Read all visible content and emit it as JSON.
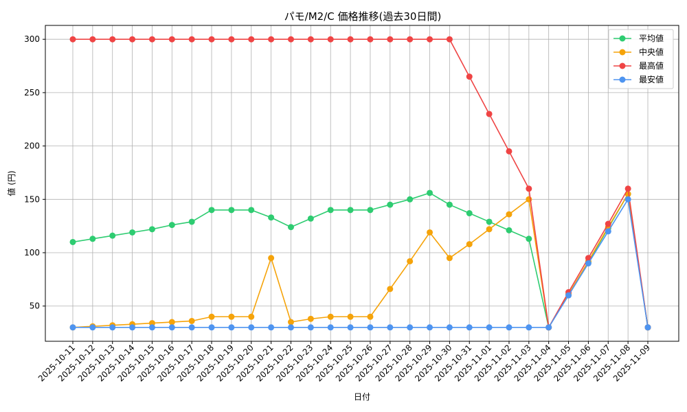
{
  "chart_data": {
    "type": "line",
    "title": "パモ/M2/C 価格推移(過去30日間)",
    "xlabel": "日付",
    "ylabel": "値 (円)",
    "ylim": [
      17,
      313
    ],
    "yticks": [
      50,
      100,
      150,
      200,
      250,
      300
    ],
    "grid": true,
    "legend_position": "top-right",
    "x": [
      "2025-10-11",
      "2025-10-12",
      "2025-10-13",
      "2025-10-14",
      "2025-10-15",
      "2025-10-16",
      "2025-10-17",
      "2025-10-18",
      "2025-10-19",
      "2025-10-20",
      "2025-10-21",
      "2025-10-22",
      "2025-10-23",
      "2025-10-24",
      "2025-10-25",
      "2025-10-26",
      "2025-10-27",
      "2025-10-28",
      "2025-10-29",
      "2025-10-30",
      "2025-10-31",
      "2025-11-01",
      "2025-11-02",
      "2025-11-03",
      "2025-11-04",
      "2025-11-05",
      "2025-11-06",
      "2025-11-07",
      "2025-11-08",
      "2025-11-09"
    ],
    "series": [
      {
        "name": "平均値",
        "color": "#2ecc71",
        "values": [
          110,
          113,
          116,
          119,
          122,
          126,
          129,
          140,
          140,
          140,
          133,
          124,
          132,
          140,
          140,
          140,
          145,
          150,
          156,
          145,
          137,
          129,
          121,
          113,
          30,
          61,
          91,
          123,
          155,
          30
        ]
      },
      {
        "name": "中央値",
        "color": "#f5a30a",
        "values": [
          30,
          31,
          32,
          33,
          34,
          35,
          36,
          40,
          40,
          40,
          95,
          35,
          38,
          40,
          40,
          40,
          66,
          92,
          119,
          95,
          108,
          122,
          136,
          150,
          30,
          61,
          92,
          124,
          155,
          30
        ]
      },
      {
        "name": "最高値",
        "color": "#ef4444",
        "values": [
          300,
          300,
          300,
          300,
          300,
          300,
          300,
          300,
          300,
          300,
          300,
          300,
          300,
          300,
          300,
          300,
          300,
          300,
          300,
          300,
          265,
          230,
          195,
          160,
          30,
          63,
          95,
          127,
          160,
          30
        ]
      },
      {
        "name": "最安値",
        "color": "#4e94f0",
        "values": [
          30,
          30,
          30,
          30,
          30,
          30,
          30,
          30,
          30,
          30,
          30,
          30,
          30,
          30,
          30,
          30,
          30,
          30,
          30,
          30,
          30,
          30,
          30,
          30,
          30,
          60,
          90,
          120,
          150,
          30
        ]
      }
    ]
  }
}
